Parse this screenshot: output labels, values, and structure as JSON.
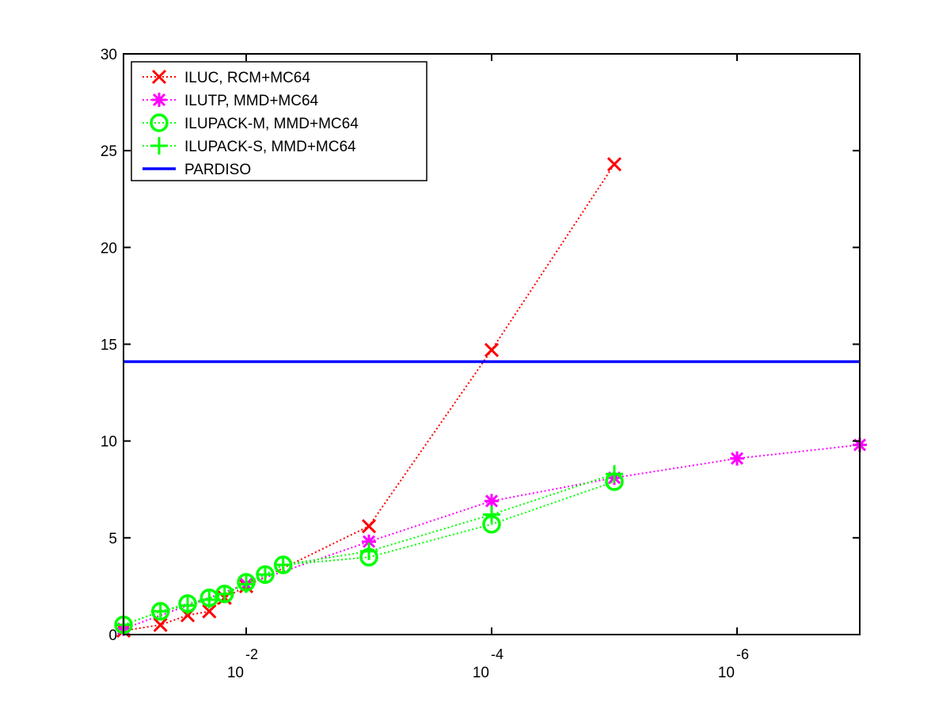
{
  "chart_data": {
    "type": "line",
    "title": "",
    "xlabel": "",
    "ylabel": "",
    "x_scale": "log-reversed",
    "x_tick_labels": [
      {
        "x": 0.01,
        "base": "10",
        "exponent": "-2"
      },
      {
        "x": 0.0001,
        "base": "10",
        "exponent": "-4"
      },
      {
        "x": 1e-06,
        "base": "10",
        "exponent": "-6"
      }
    ],
    "xlim": [
      0.1,
      1e-07
    ],
    "ylim": [
      0,
      30
    ],
    "y_tick_labels": [
      "0",
      "5",
      "10",
      "15",
      "20",
      "25",
      "30"
    ],
    "y_ticks": [
      0,
      5,
      10,
      15,
      20,
      25,
      30
    ],
    "grid": false,
    "legend_position": "top-left",
    "series": [
      {
        "name": "ILUC, RCM+MC64",
        "color": "#ff0000",
        "marker": "x",
        "line_style": "dotted",
        "x": [
          0.1,
          0.05,
          0.03,
          0.02,
          0.015,
          0.01,
          0.001,
          0.0001,
          1e-05
        ],
        "y": [
          0.2,
          0.5,
          1.0,
          1.2,
          1.9,
          2.5,
          5.6,
          14.7,
          24.3
        ]
      },
      {
        "name": "ILUTP, MMD+MC64",
        "color": "#ff00ff",
        "marker": "asterisk",
        "line_style": "dotted",
        "x": [
          0.1,
          0.01,
          0.001,
          0.0001,
          1e-05,
          1e-06,
          1e-07
        ],
        "y": [
          0.3,
          2.6,
          4.8,
          6.9,
          8.1,
          9.1,
          9.8
        ]
      },
      {
        "name": "ILUPACK-M, MMD+MC64",
        "color": "#00ff00",
        "marker": "circle",
        "line_style": "dotted",
        "x": [
          0.1,
          0.05,
          0.03,
          0.02,
          0.015,
          0.01,
          0.007,
          0.005,
          0.001,
          0.0001,
          1e-05
        ],
        "y": [
          0.5,
          1.2,
          1.6,
          1.9,
          2.1,
          2.7,
          3.1,
          3.6,
          4.0,
          5.7,
          7.9
        ]
      },
      {
        "name": "ILUPACK-S, MMD+MC64",
        "color": "#00ff00",
        "marker": "plus",
        "line_style": "dotted",
        "x": [
          0.1,
          0.05,
          0.03,
          0.02,
          0.015,
          0.01,
          0.007,
          0.005,
          0.001,
          0.0001,
          1e-05
        ],
        "y": [
          0.5,
          1.2,
          1.5,
          1.8,
          2.1,
          2.6,
          3.1,
          3.6,
          4.3,
          6.2,
          8.3
        ]
      },
      {
        "name": "PARDISO",
        "color": "#0000ff",
        "marker": "none",
        "line_style": "solid",
        "x": [
          0.1,
          1e-07
        ],
        "y": [
          14.1,
          14.1
        ]
      }
    ]
  }
}
